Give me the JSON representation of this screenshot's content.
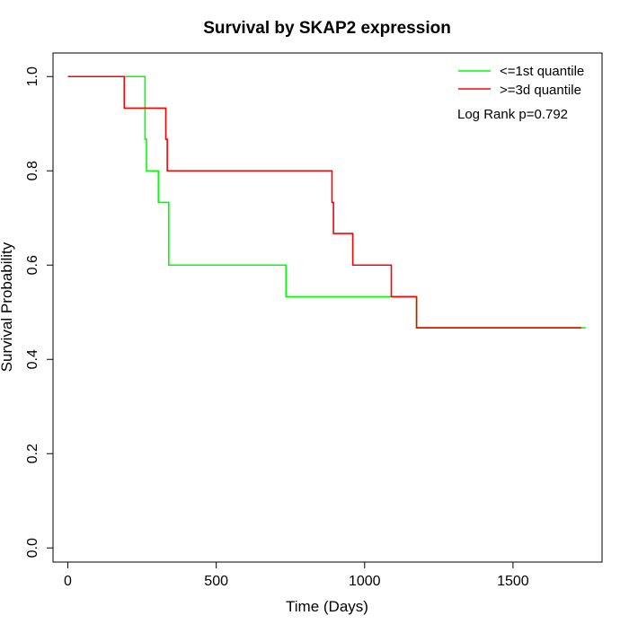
{
  "chart_data": {
    "type": "line",
    "step": true,
    "title": "Survival by SKAP2 expression",
    "xlabel": "Time (Days)",
    "ylabel": "Survival Probability",
    "xlim": [
      -50,
      1800
    ],
    "ylim": [
      -0.03,
      1.05
    ],
    "xticks": [
      0,
      500,
      1000,
      1500
    ],
    "xtick_labels": [
      "0",
      "500",
      "1000",
      "1500"
    ],
    "yticks": [
      0.0,
      0.2,
      0.4,
      0.6,
      0.8,
      1.0
    ],
    "ytick_labels": [
      "0.0",
      "0.2",
      "0.4",
      "0.6",
      "0.8",
      "1.0"
    ],
    "grid": false,
    "legend_position": "top-right",
    "annotation": "Log Rank p=0.792",
    "series": [
      {
        "name": "<=1st quantile",
        "color": "#00ff00",
        "x": [
          0,
          255,
          260,
          265,
          305,
          340,
          735,
          1175,
          1745
        ],
        "y": [
          1.0,
          1.0,
          0.867,
          0.8,
          0.733,
          0.6,
          0.533,
          0.467,
          0.467
        ]
      },
      {
        "name": ">=3d quantile",
        "color": "#ff0000",
        "x": [
          0,
          190,
          330,
          335,
          890,
          895,
          960,
          1090,
          1175,
          1730
        ],
        "y": [
          1.0,
          0.933,
          0.867,
          0.8,
          0.733,
          0.667,
          0.6,
          0.533,
          0.467,
          0.467
        ]
      }
    ]
  }
}
